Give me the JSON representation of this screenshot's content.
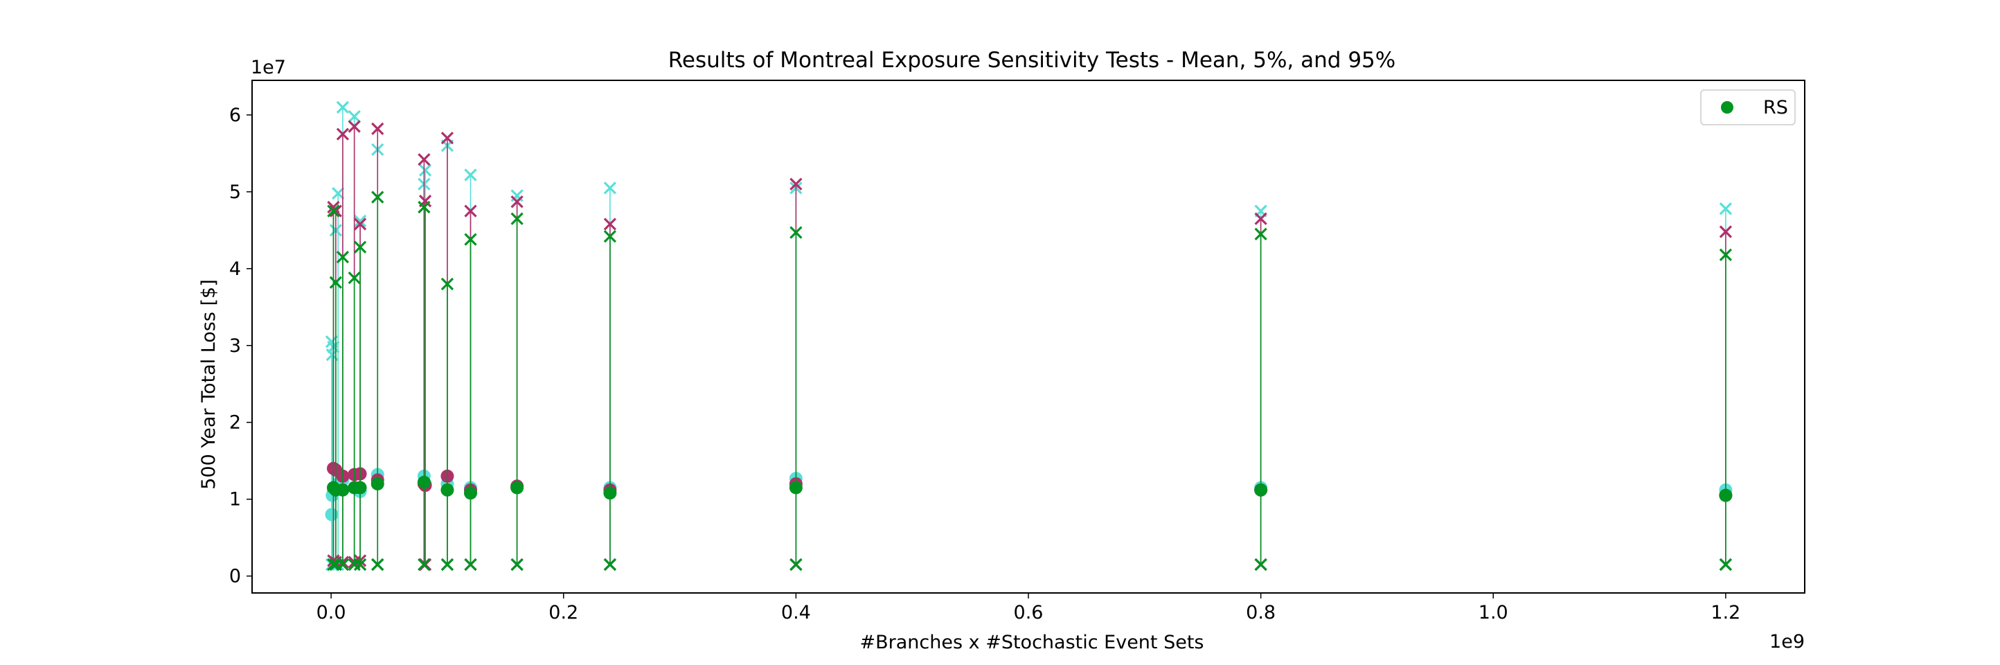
{
  "chart_data": {
    "type": "scatter",
    "title": "Results of Montreal Exposure Sensitivity Tests - Mean, 5%, and 95%",
    "xlabel": "#Branches x #Stochastic Event Sets",
    "ylabel": "500 Year Total Loss [$]",
    "x_offset_label": "1e9",
    "y_offset_label": "1e7",
    "x_scale": 1000000000.0,
    "y_scale": 10000000.0,
    "xlim": [
      -0.068,
      1.268
    ],
    "ylim": [
      -0.22,
      6.45
    ],
    "x_ticks": [
      0.0,
      0.2,
      0.4,
      0.6,
      0.8,
      1.0,
      1.2
    ],
    "x_tick_labels": [
      "0.0",
      "0.2",
      "0.4",
      "0.6",
      "0.8",
      "1.0",
      "1.2"
    ],
    "y_ticks": [
      0,
      1,
      2,
      3,
      4,
      5,
      6
    ],
    "y_tick_labels": [
      "0",
      "1",
      "2",
      "3",
      "4",
      "5",
      "6"
    ],
    "grid": false,
    "legend": {
      "position": "top-right",
      "entries": [
        {
          "label": "RS",
          "color": "#009420",
          "marker": "circle"
        }
      ]
    },
    "colors": {
      "green": "#009420",
      "crimson": "#b0306a",
      "cyan": "#58e0d8"
    },
    "groups": [
      {
        "color": "#58e0d8",
        "points": [
          {
            "x": 0.0005,
            "mean": 0.8,
            "p5": 0.15,
            "p95": 3.05
          },
          {
            "x": 0.001,
            "mean": 1.05,
            "p5": 0.15,
            "p95": 2.88
          },
          {
            "x": 0.002,
            "mean": 1.1,
            "p5": 0.15,
            "p95": 2.98
          },
          {
            "x": 0.004,
            "mean": 1.15,
            "p5": 0.15,
            "p95": 4.5
          },
          {
            "x": 0.006,
            "mean": 1.2,
            "p5": 0.15,
            "p95": 4.98
          },
          {
            "x": 0.01,
            "mean": 1.25,
            "p5": 0.15,
            "p95": 6.1
          },
          {
            "x": 0.02,
            "mean": 1.15,
            "p5": 0.15,
            "p95": 5.98
          },
          {
            "x": 0.025,
            "mean": 1.1,
            "p5": 0.15,
            "p95": 4.62
          },
          {
            "x": 0.04,
            "mean": 1.32,
            "p5": 0.15,
            "p95": 5.55
          },
          {
            "x": 0.08,
            "mean": 1.3,
            "p5": 0.15,
            "p95": 5.1
          },
          {
            "x": 0.081,
            "mean": 1.2,
            "p5": 0.15,
            "p95": 5.28
          },
          {
            "x": 0.1,
            "mean": 1.2,
            "p5": 0.15,
            "p95": 5.6
          },
          {
            "x": 0.12,
            "mean": 1.15,
            "p5": 0.15,
            "p95": 5.22
          },
          {
            "x": 0.16,
            "mean": 1.15,
            "p5": 0.15,
            "p95": 4.95
          },
          {
            "x": 0.24,
            "mean": 1.15,
            "p5": 0.15,
            "p95": 5.05
          },
          {
            "x": 0.4,
            "mean": 1.27,
            "p5": 0.15,
            "p95": 5.05
          },
          {
            "x": 0.8,
            "mean": 1.15,
            "p5": 0.15,
            "p95": 4.75
          },
          {
            "x": 1.2,
            "mean": 1.12,
            "p5": 0.15,
            "p95": 4.78
          }
        ]
      },
      {
        "color": "#b0306a",
        "points": [
          {
            "x": 0.002,
            "mean": 1.4,
            "p5": 0.2,
            "p95": 4.8
          },
          {
            "x": 0.004,
            "mean": 1.38,
            "p5": 0.18,
            "p95": 4.75
          },
          {
            "x": 0.01,
            "mean": 1.3,
            "p5": 0.18,
            "p95": 5.75
          },
          {
            "x": 0.02,
            "mean": 1.32,
            "p5": 0.18,
            "p95": 5.85
          },
          {
            "x": 0.025,
            "mean": 1.33,
            "p5": 0.2,
            "p95": 4.58
          },
          {
            "x": 0.04,
            "mean": 1.25,
            "p5": 0.15,
            "p95": 5.82
          },
          {
            "x": 0.08,
            "mean": 1.2,
            "p5": 0.15,
            "p95": 5.42
          },
          {
            "x": 0.081,
            "mean": 1.18,
            "p5": 0.15,
            "p95": 4.88
          },
          {
            "x": 0.1,
            "mean": 1.3,
            "p5": 0.15,
            "p95": 5.7
          },
          {
            "x": 0.12,
            "mean": 1.12,
            "p5": 0.15,
            "p95": 4.75
          },
          {
            "x": 0.16,
            "mean": 1.17,
            "p5": 0.15,
            "p95": 4.87
          },
          {
            "x": 0.24,
            "mean": 1.12,
            "p5": 0.15,
            "p95": 4.58
          },
          {
            "x": 0.4,
            "mean": 1.2,
            "p5": 0.15,
            "p95": 5.1
          },
          {
            "x": 0.8,
            "mean": 1.12,
            "p5": 0.15,
            "p95": 4.65
          },
          {
            "x": 1.2,
            "mean": 1.05,
            "p5": 0.15,
            "p95": 4.48
          }
        ]
      },
      {
        "color": "#009420",
        "points": [
          {
            "x": 0.002,
            "mean": 1.15,
            "p5": 0.15,
            "p95": 4.75
          },
          {
            "x": 0.004,
            "mean": 1.12,
            "p5": 0.15,
            "p95": 3.82
          },
          {
            "x": 0.01,
            "mean": 1.12,
            "p5": 0.15,
            "p95": 4.15
          },
          {
            "x": 0.02,
            "mean": 1.15,
            "p5": 0.15,
            "p95": 3.88
          },
          {
            "x": 0.025,
            "mean": 1.15,
            "p5": 0.15,
            "p95": 4.28
          },
          {
            "x": 0.04,
            "mean": 1.2,
            "p5": 0.15,
            "p95": 4.93
          },
          {
            "x": 0.08,
            "mean": 1.22,
            "p5": 0.15,
            "p95": 4.8
          },
          {
            "x": 0.1,
            "mean": 1.12,
            "p5": 0.15,
            "p95": 3.8
          },
          {
            "x": 0.12,
            "mean": 1.08,
            "p5": 0.15,
            "p95": 4.38
          },
          {
            "x": 0.16,
            "mean": 1.15,
            "p5": 0.15,
            "p95": 4.65
          },
          {
            "x": 0.24,
            "mean": 1.08,
            "p5": 0.15,
            "p95": 4.42
          },
          {
            "x": 0.4,
            "mean": 1.15,
            "p5": 0.15,
            "p95": 4.47
          },
          {
            "x": 0.8,
            "mean": 1.12,
            "p5": 0.15,
            "p95": 4.45
          },
          {
            "x": 1.2,
            "mean": 1.05,
            "p5": 0.15,
            "p95": 4.18
          }
        ]
      }
    ]
  }
}
